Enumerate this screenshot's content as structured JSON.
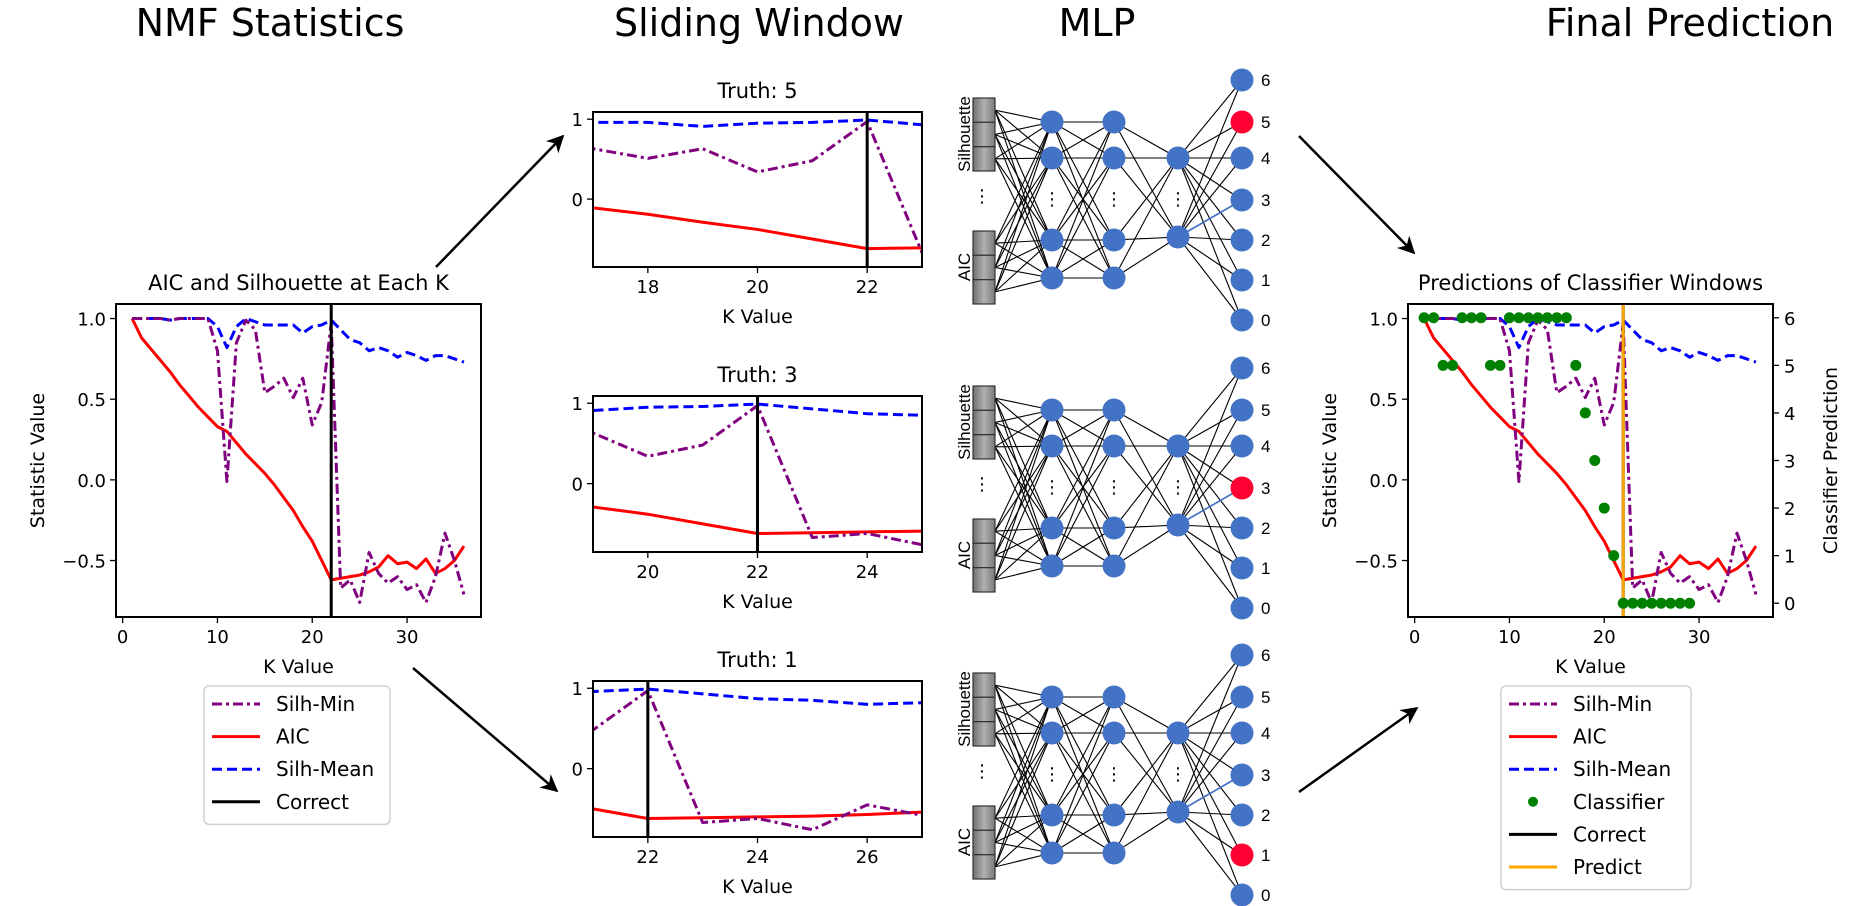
{
  "titles": {
    "nmf": "NMF Statistics",
    "sliding": "Sliding Window",
    "mlp": "MLP",
    "final": "Final Prediction"
  },
  "colors": {
    "silh_min": "#800080",
    "aic": "#ff0000",
    "silh_mean": "#0000ff",
    "classifier": "#008000",
    "correct": "#000000",
    "predict": "#ffa500"
  },
  "legend_labels": {
    "silh_min": "Silh-Min",
    "aic": "AIC",
    "silh_mean": "Silh-Mean",
    "classifier": "Classifier",
    "correct": "Correct",
    "predict": "Predict"
  },
  "mlp": {
    "input_labels": [
      "Silhouette",
      "AIC"
    ],
    "ellipsis": "⋮",
    "output_labels": [
      "6",
      "5",
      "4",
      "3",
      "2",
      "1",
      "0"
    ],
    "node_color": "#4472c4",
    "highlight_color": "#ff0033",
    "networks": [
      {
        "highlight": "5"
      },
      {
        "highlight": "3"
      },
      {
        "highlight": "1"
      }
    ]
  },
  "chart_data": [
    {
      "id": "nmf",
      "type": "line",
      "title": "AIC and Silhouette at Each K",
      "xlabel": "K Value",
      "ylabel": "Statistic Value",
      "xlim": [
        -0.7,
        37.8
      ],
      "ylim": [
        -0.85,
        1.09
      ],
      "xticks": [
        0,
        10,
        20,
        30
      ],
      "yticks": [
        -0.5,
        0.0,
        0.5,
        1.0
      ],
      "ytick_labels": [
        "−0.5",
        "0.0",
        "0.5",
        "1.0"
      ],
      "correct_k": 22,
      "legend": [
        "silh_min",
        "aic",
        "silh_mean",
        "correct"
      ],
      "legend_placement": "below",
      "x": [
        1,
        2,
        3,
        4,
        5,
        6,
        7,
        8,
        9,
        10,
        11,
        12,
        13,
        14,
        15,
        16,
        17,
        18,
        19,
        20,
        21,
        22,
        23,
        24,
        25,
        26,
        27,
        28,
        29,
        30,
        31,
        32,
        33,
        34,
        35,
        36
      ],
      "series": [
        {
          "name": "Silh-Mean",
          "key": "silh_mean",
          "style": "dashed",
          "values": [
            1,
            1,
            1,
            1,
            0.99,
            1,
            1,
            1,
            1,
            0.95,
            0.82,
            0.95,
            1.0,
            0.98,
            0.96,
            0.96,
            0.96,
            0.96,
            0.91,
            0.95,
            0.96,
            0.99,
            0.93,
            0.87,
            0.85,
            0.8,
            0.82,
            0.8,
            0.76,
            0.79,
            0.77,
            0.74,
            0.77,
            0.77,
            0.75,
            0.73
          ]
        },
        {
          "name": "AIC",
          "key": "aic",
          "style": "solid",
          "values": [
            1,
            0.88,
            0.81,
            0.74,
            0.67,
            0.59,
            0.52,
            0.45,
            0.39,
            0.33,
            0.3,
            0.23,
            0.16,
            0.1,
            0.04,
            -0.03,
            -0.11,
            -0.19,
            -0.29,
            -0.38,
            -0.5,
            -0.62,
            -0.61,
            -0.6,
            -0.59,
            -0.57,
            -0.54,
            -0.47,
            -0.52,
            -0.51,
            -0.55,
            -0.49,
            -0.58,
            -0.55,
            -0.5,
            -0.41
          ]
        },
        {
          "name": "Silh-Min",
          "key": "silh_min",
          "style": "dashdot",
          "values": [
            1,
            1,
            1,
            1,
            0.99,
            1,
            1,
            1,
            1,
            0.8,
            -0.01,
            0.85,
            0.99,
            0.93,
            0.54,
            0.58,
            0.63,
            0.51,
            0.63,
            0.34,
            0.48,
            0.97,
            -0.67,
            -0.62,
            -0.76,
            -0.45,
            -0.58,
            -0.64,
            -0.6,
            -0.68,
            -0.65,
            -0.76,
            -0.6,
            -0.33,
            -0.5,
            -0.71
          ]
        }
      ]
    },
    {
      "id": "window1",
      "type": "line",
      "title": "Truth: 5",
      "xlabel": "K Value",
      "xlim": [
        17,
        23
      ],
      "ylim": [
        -0.85,
        1.09
      ],
      "xticks": [
        18,
        20,
        22
      ],
      "yticks": [
        0,
        1
      ],
      "ytick_labels": [
        "0",
        "1"
      ],
      "correct_k": 22,
      "source": "nmf"
    },
    {
      "id": "window2",
      "type": "line",
      "title": "Truth: 3",
      "xlabel": "K Value",
      "xlim": [
        19,
        25
      ],
      "ylim": [
        -0.85,
        1.09
      ],
      "xticks": [
        20,
        22,
        24
      ],
      "yticks": [
        0,
        1
      ],
      "ytick_labels": [
        "0",
        "1"
      ],
      "correct_k": 22,
      "source": "nmf"
    },
    {
      "id": "window3",
      "type": "line",
      "title": "Truth: 1",
      "xlabel": "K Value",
      "xlim": [
        21,
        27
      ],
      "ylim": [
        -0.85,
        1.09
      ],
      "xticks": [
        22,
        24,
        26
      ],
      "yticks": [
        0,
        1
      ],
      "ytick_labels": [
        "0",
        "1"
      ],
      "correct_k": 22,
      "source": "nmf"
    },
    {
      "id": "final",
      "type": "line",
      "title": "Predictions of Classifier Windows",
      "xlabel": "K Value",
      "ylabel": "Statistic Value",
      "ylabel_right": "Classifier Prediction",
      "xlim": [
        -0.7,
        37.8
      ],
      "ylim": [
        -0.85,
        1.09
      ],
      "ylim_right": [
        -0.29,
        6.29
      ],
      "xticks": [
        0,
        10,
        20,
        30
      ],
      "yticks": [
        -0.5,
        0.0,
        0.5,
        1.0
      ],
      "ytick_labels": [
        "−0.5",
        "0.0",
        "0.5",
        "1.0"
      ],
      "yticks_right": [
        0,
        1,
        2,
        3,
        4,
        5,
        6
      ],
      "correct_k": 22,
      "predict_k": 22,
      "source": "nmf",
      "legend": [
        "silh_min",
        "aic",
        "silh_mean",
        "classifier",
        "correct",
        "predict"
      ],
      "legend_placement": "below",
      "classifier": {
        "x": [
          1,
          2,
          3,
          4,
          5,
          6,
          7,
          8,
          9,
          10,
          11,
          12,
          13,
          14,
          15,
          16,
          17,
          18,
          19,
          20,
          21,
          22,
          23,
          24,
          25,
          26,
          27,
          28,
          29
        ],
        "values": [
          6,
          6,
          5,
          5,
          6,
          6,
          6,
          5,
          5,
          6,
          6,
          6,
          6,
          6,
          6,
          6,
          5,
          4,
          3,
          2,
          1,
          0,
          0,
          0,
          0,
          0,
          0,
          0,
          0
        ]
      }
    }
  ]
}
